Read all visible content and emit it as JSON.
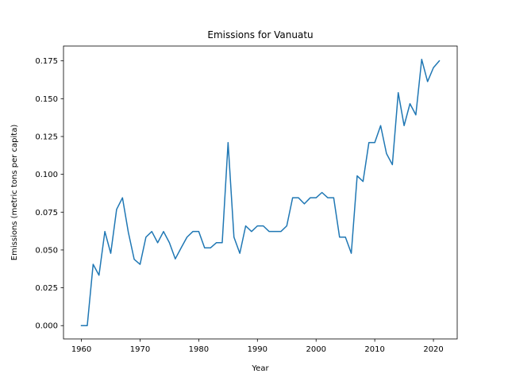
{
  "chart_data": {
    "type": "line",
    "title": "Emissions for Vanuatu",
    "xlabel": "Year",
    "ylabel": "Emissions (metric tons per capita)",
    "xlim": [
      1956.95,
      2024.05
    ],
    "ylim": [
      -0.0088,
      0.1848
    ],
    "xticks": [
      1960,
      1970,
      1980,
      1990,
      2000,
      2010,
      2020
    ],
    "yticks": [
      0.0,
      0.025,
      0.05,
      0.075,
      0.1,
      0.125,
      0.15,
      0.175
    ],
    "ytick_labels": [
      "0.000",
      "0.025",
      "0.050",
      "0.075",
      "0.100",
      "0.125",
      "0.150",
      "0.175"
    ],
    "grid": false,
    "series": [
      {
        "color": "#1f77b4",
        "x": [
          1960,
          1961,
          1962,
          1963,
          1964,
          1965,
          1966,
          1967,
          1968,
          1969,
          1970,
          1971,
          1972,
          1973,
          1974,
          1975,
          1976,
          1977,
          1978,
          1979,
          1980,
          1981,
          1982,
          1983,
          1984,
          1985,
          1986,
          1987,
          1988,
          1989,
          1990,
          1991,
          1992,
          1993,
          1994,
          1995,
          1996,
          1997,
          1998,
          1999,
          2000,
          2001,
          2002,
          2003,
          2004,
          2005,
          2006,
          2007,
          2008,
          2009,
          2010,
          2011,
          2012,
          2013,
          2014,
          2015,
          2016,
          2017,
          2018,
          2019,
          2020,
          2021
        ],
        "values": [
          0.0,
          0.0,
          0.0405,
          0.0333,
          0.0622,
          0.0478,
          0.0768,
          0.0845,
          0.0617,
          0.0438,
          0.0405,
          0.0585,
          0.0622,
          0.0548,
          0.0622,
          0.0548,
          0.0441,
          0.0514,
          0.0585,
          0.0622,
          0.0622,
          0.0514,
          0.0514,
          0.0548,
          0.0548,
          0.121,
          0.0585,
          0.0478,
          0.0659,
          0.0622,
          0.0659,
          0.0659,
          0.0622,
          0.0622,
          0.0622,
          0.0659,
          0.0845,
          0.0845,
          0.0805,
          0.0845,
          0.0845,
          0.088,
          0.0845,
          0.0845,
          0.0585,
          0.0585,
          0.0478,
          0.099,
          0.0953,
          0.121,
          0.121,
          0.1322,
          0.1137,
          0.1064,
          0.154,
          0.1322,
          0.1467,
          0.1393,
          0.176,
          0.1613,
          0.1705,
          0.175
        ]
      }
    ]
  }
}
